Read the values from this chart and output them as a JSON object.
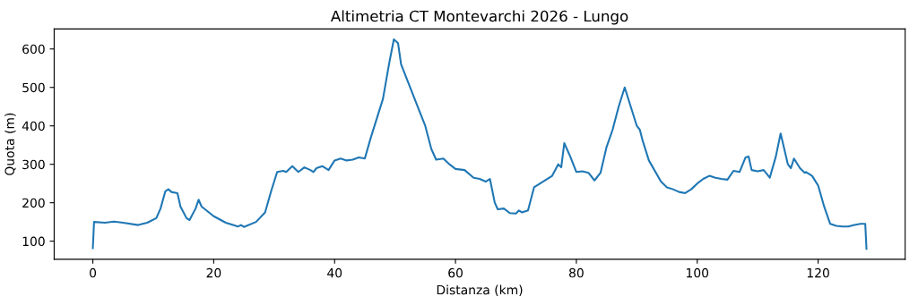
{
  "chart_data": {
    "type": "line",
    "title": "Altimetria CT Montevarchi 2026 - Lungo",
    "xlabel": "Distanza (km)",
    "ylabel": "Quota (m)",
    "x": [
      0,
      0.2,
      2,
      3.5,
      5,
      7.5,
      9,
      10.5,
      11.2,
      12,
      12.5,
      13,
      14,
      14.5,
      15.5,
      16,
      17,
      17.5,
      18,
      20,
      22,
      24,
      24.5,
      25,
      27,
      28.5,
      29.5,
      30.5,
      31.5,
      32,
      33,
      34,
      35,
      36,
      36.5,
      37,
      38,
      39,
      40,
      41,
      42,
      43,
      44,
      45,
      46,
      48,
      49,
      49.8,
      50.5,
      51,
      52,
      53,
      54,
      55,
      56,
      56.8,
      58,
      59,
      60,
      61.5,
      63,
      64,
      65,
      65.7,
      66.5,
      67,
      68,
      69,
      70,
      70.5,
      71,
      72,
      73,
      74,
      75,
      76,
      77,
      77.5,
      78,
      79,
      80,
      81,
      82,
      83,
      84,
      85,
      86,
      87,
      88,
      89,
      90,
      90.5,
      91,
      92,
      94,
      95,
      96,
      97,
      98,
      99,
      100,
      101,
      102,
      103,
      104,
      105,
      106,
      107,
      108,
      108.5,
      109,
      110,
      111,
      112,
      113,
      113.8,
      115,
      115.5,
      116,
      117,
      117.8,
      118,
      119,
      120,
      121,
      122,
      123,
      124,
      125,
      126,
      127,
      127.8,
      128
    ],
    "series": [
      {
        "color": "#1f77b4",
        "values": [
          82,
          150,
          148,
          151,
          148,
          142,
          148,
          160,
          185,
          230,
          235,
          228,
          225,
          190,
          160,
          155,
          185,
          208,
          190,
          165,
          148,
          138,
          142,
          137,
          150,
          175,
          230,
          280,
          283,
          280,
          295,
          280,
          292,
          285,
          280,
          290,
          295,
          285,
          310,
          315,
          310,
          312,
          318,
          315,
          370,
          470,
          560,
          625,
          615,
          560,
          520,
          480,
          440,
          400,
          340,
          312,
          315,
          300,
          288,
          285,
          265,
          262,
          255,
          262,
          200,
          183,
          185,
          173,
          172,
          180,
          175,
          180,
          240,
          250,
          260,
          270,
          300,
          292,
          355,
          320,
          280,
          282,
          278,
          258,
          278,
          345,
          390,
          450,
          500,
          450,
          400,
          390,
          360,
          310,
          255,
          240,
          235,
          228,
          225,
          235,
          250,
          262,
          270,
          265,
          262,
          260,
          283,
          280,
          318,
          320,
          285,
          282,
          285,
          265,
          320,
          380,
          300,
          290,
          315,
          290,
          278,
          280,
          270,
          245,
          190,
          145,
          140,
          138,
          138,
          142,
          145,
          145,
          80
        ]
      }
    ],
    "xlim": [
      -6.4,
      134.4
    ],
    "ylim": [
      53,
      652
    ],
    "xticks": [
      0,
      20,
      40,
      60,
      80,
      100,
      120
    ],
    "yticks": [
      100,
      200,
      300,
      400,
      500,
      600
    ]
  }
}
